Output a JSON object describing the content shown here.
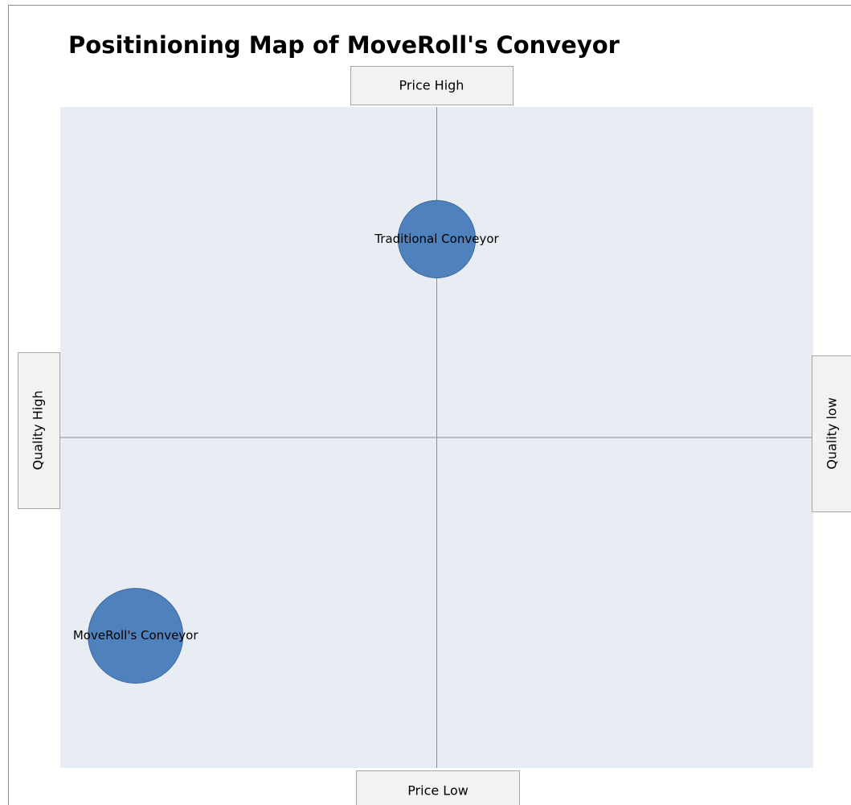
{
  "chart_data": {
    "type": "bubble",
    "title": "Positinioning Map of MoveRoll's Conveyor",
    "axis_labels": {
      "top": "Price High",
      "bottom": "Price Low",
      "left": "Quality High",
      "right": "Quality low"
    },
    "xlim": [
      -10,
      10
    ],
    "ylim": [
      -10,
      10
    ],
    "series": [
      {
        "name": "Traditional Conveyor",
        "color": "#4f81bd",
        "x": [
          0
        ],
        "values": [
          6
        ],
        "sizes": [
          4
        ]
      },
      {
        "name": "MoveRoll's Conveyor",
        "color": "#4f81bd",
        "x": [
          -8
        ],
        "values": [
          -6
        ],
        "sizes": [
          6
        ]
      }
    ]
  }
}
